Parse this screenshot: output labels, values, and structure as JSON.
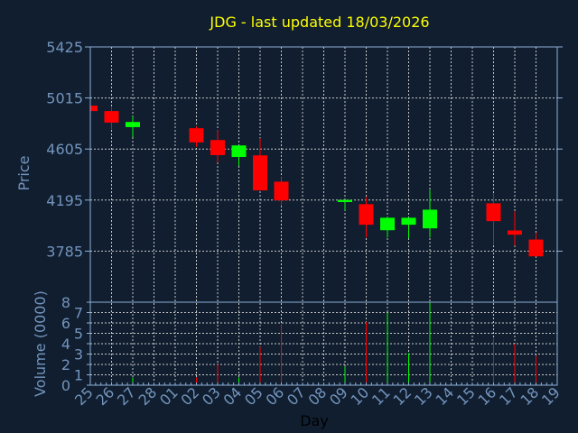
{
  "chart_data": {
    "type": "candlestick",
    "title": "JDG - last updated 18/03/2026",
    "xlabel": "Day",
    "ylabel": "Price",
    "volume_label": "Volume (0000)",
    "categories": [
      "25",
      "26",
      "27",
      "28",
      "01",
      "02",
      "03",
      "04",
      "05",
      "06",
      "07",
      "08",
      "09",
      "10",
      "11",
      "12",
      "13",
      "14",
      "15",
      "16",
      "17",
      "18",
      "19"
    ],
    "price_ticks": [
      5425,
      5015,
      4605,
      4195,
      3785
    ],
    "ylim": [
      3375,
      5425
    ],
    "volume_ticks": [
      0,
      1,
      2,
      3,
      4,
      5,
      6,
      7,
      8
    ],
    "volume_ylim": [
      0,
      8
    ],
    "grid": true,
    "colors": {
      "up": "#00ff00",
      "down": "#ff0000",
      "title": "#ffff00",
      "text": "#7394bd",
      "axis": "#8fb0d8",
      "grid": "#c8c8c8",
      "background": "#101e2f"
    },
    "candles": [
      {
        "day": "25",
        "open": 4953,
        "high": 4953,
        "low": 4910,
        "close": 4910,
        "volume": 0
      },
      {
        "day": "26",
        "open": 4910,
        "high": 4939,
        "low": 4764,
        "close": 4817,
        "volume": 0.5
      },
      {
        "day": "27",
        "open": 4781,
        "high": 4866,
        "low": 4701,
        "close": 4822,
        "volume": 0.75
      },
      {
        "day": "02",
        "open": 4772,
        "high": 4786,
        "low": 4621,
        "close": 4658,
        "volume": 0.75
      },
      {
        "day": "03",
        "open": 4677,
        "high": 4757,
        "low": 4496,
        "close": 4556,
        "volume": 2.0
      },
      {
        "day": "04",
        "open": 4541,
        "high": 4634,
        "low": 4469,
        "close": 4634,
        "volume": 0.75
      },
      {
        "day": "05",
        "open": 4554,
        "high": 4692,
        "low": 4273,
        "close": 4273,
        "volume": 3.7
      },
      {
        "day": "06",
        "open": 4343,
        "high": 4380,
        "low": 4154,
        "close": 4193,
        "volume": 5.9
      },
      {
        "day": "09",
        "open": 4179,
        "high": 4196,
        "low": 4113,
        "close": 4196,
        "volume": 1.8
      },
      {
        "day": "10",
        "open": 4162,
        "high": 4220,
        "low": 3895,
        "close": 3997,
        "volume": 6.1
      },
      {
        "day": "11",
        "open": 3953,
        "high": 4060,
        "low": 3895,
        "close": 4053,
        "volume": 7.0
      },
      {
        "day": "12",
        "open": 3997,
        "high": 4053,
        "low": 3888,
        "close": 4053,
        "volume": 3.1
      },
      {
        "day": "13",
        "open": 3968,
        "high": 4278,
        "low": 3895,
        "close": 4118,
        "volume": 8.0
      },
      {
        "day": "16",
        "open": 4169,
        "high": 4249,
        "low": 3837,
        "close": 4026,
        "volume": 4.5
      },
      {
        "day": "17",
        "open": 3951,
        "high": 4104,
        "low": 3830,
        "close": 3917,
        "volume": 4.0
      },
      {
        "day": "18",
        "open": 3878,
        "high": 3934,
        "low": 3743,
        "close": 3743,
        "volume": 2.85
      }
    ]
  }
}
